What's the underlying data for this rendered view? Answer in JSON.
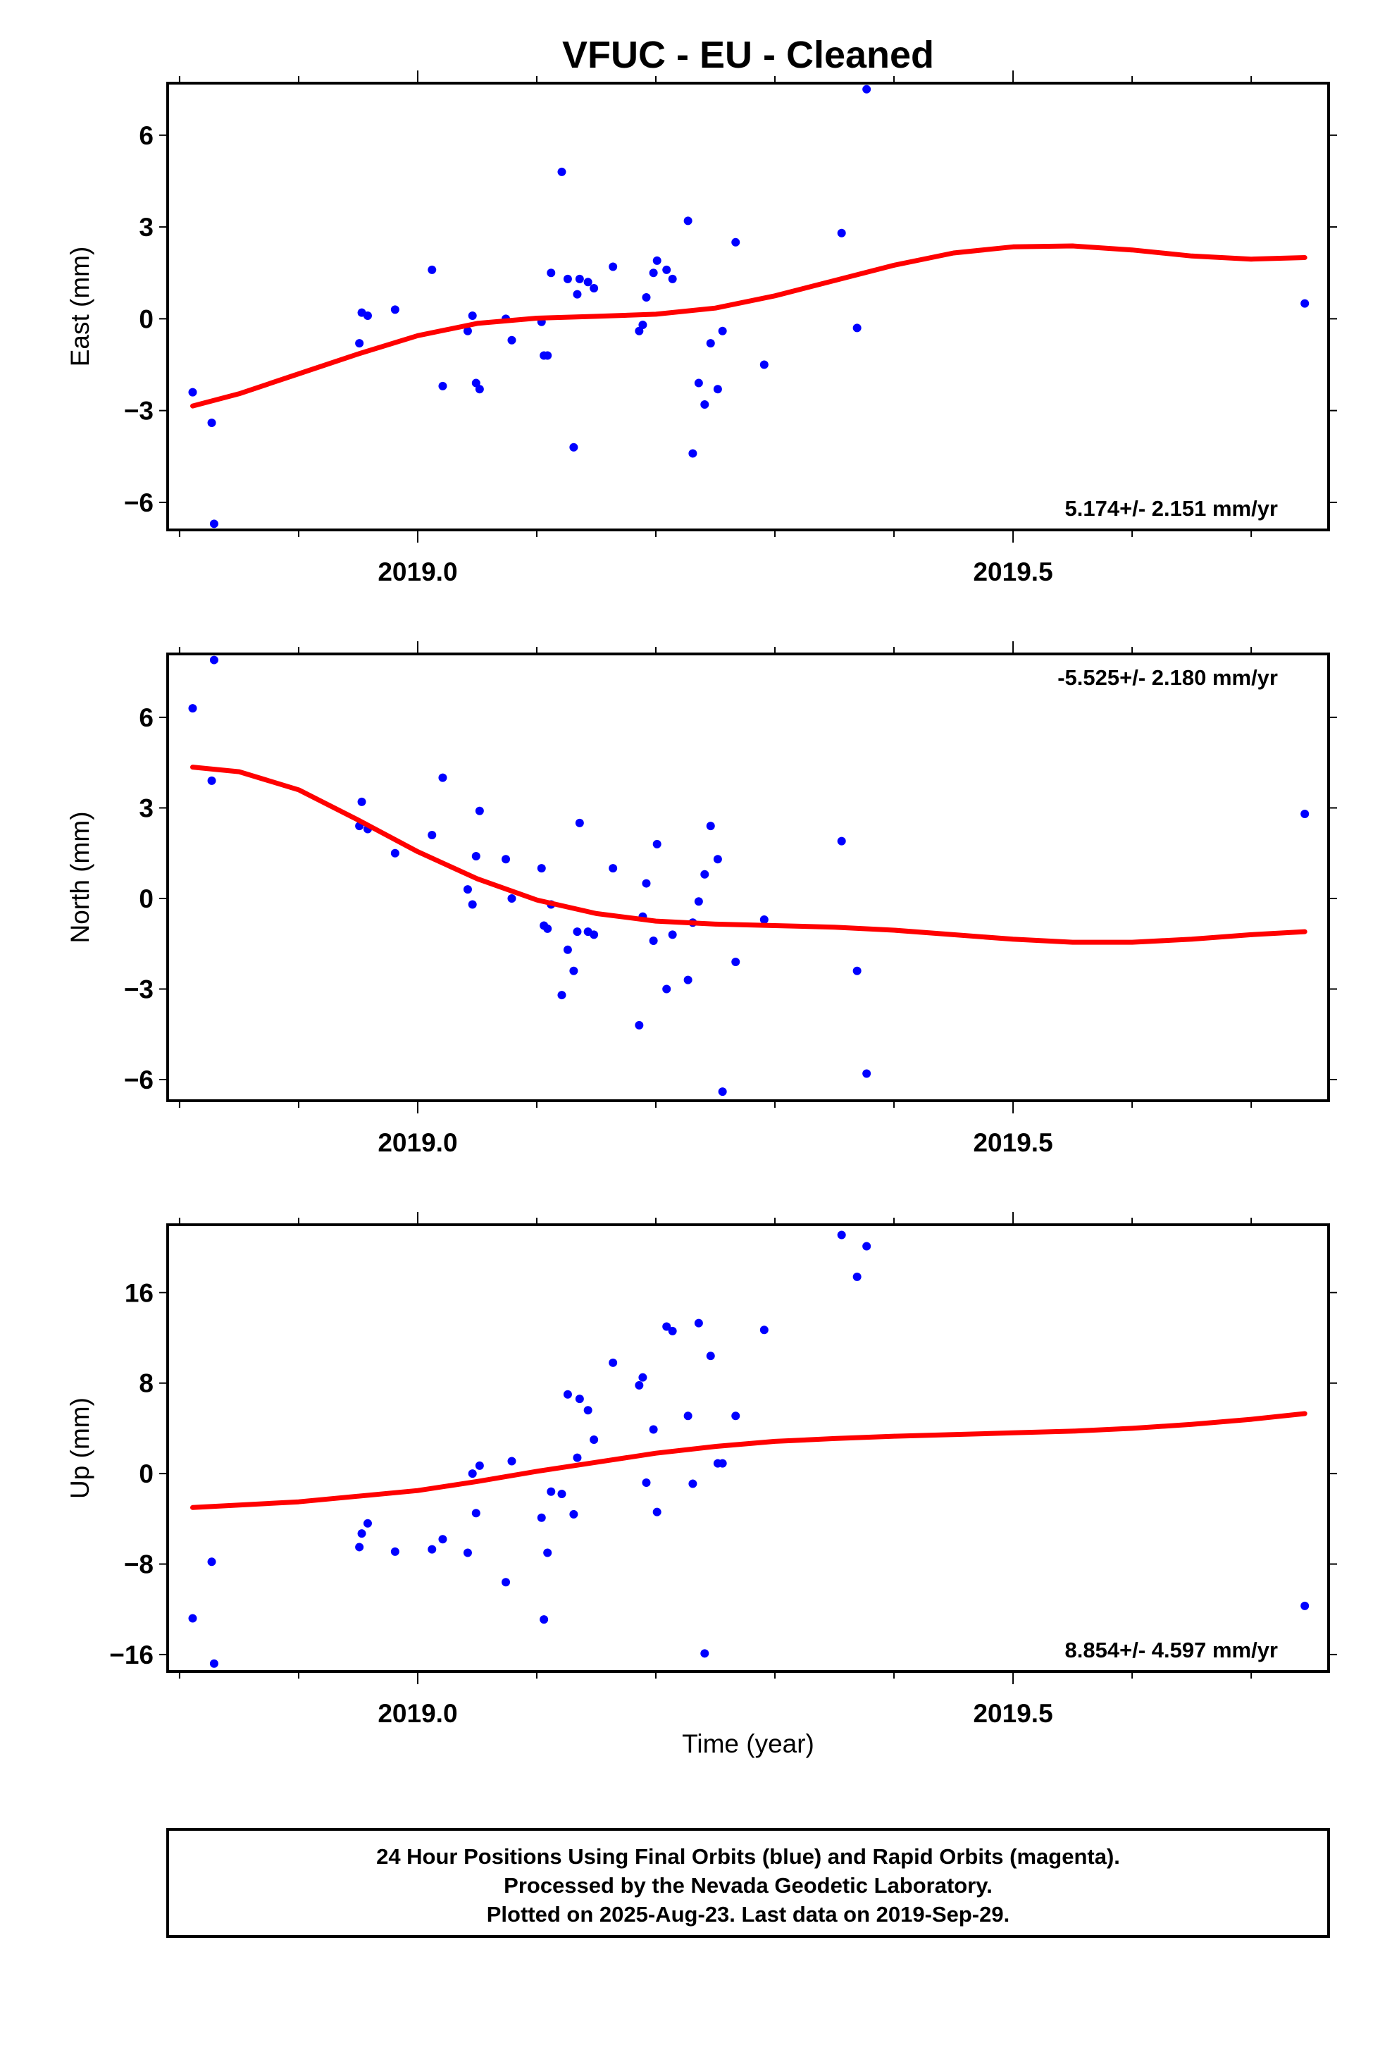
{
  "title": "VFUC  - EU - Cleaned",
  "xlabel": "Time (year)",
  "footer": [
    "24 Hour Positions Using Final Orbits (blue) and Rapid Orbits (magenta).",
    "Processed by the Nevada Geodetic Laboratory.",
    "Plotted on 2025-Aug-23. Last data on 2019-Sep-29."
  ],
  "colors": {
    "points": "#0000ff",
    "fit": "#ff0000",
    "frame": "#000000"
  },
  "chart_data": [
    {
      "type": "scatter",
      "ylabel": "East (mm)",
      "rate_text": "5.174+/- 2.151 mm/yr",
      "xlim": [
        2018.79,
        2019.765
      ],
      "ylim": [
        -6.9,
        7.7
      ],
      "yticks": [
        -6,
        -3,
        0,
        3,
        6
      ],
      "ytick_labels": [
        "−6",
        "−3",
        "0",
        "3",
        "6"
      ],
      "xticks": [
        2019.0,
        2019.5
      ],
      "xtick_labels": [
        "2019.0",
        "2019.5"
      ],
      "minor_xticks": [
        2018.8,
        2018.9,
        2019.1,
        2019.2,
        2019.3,
        2019.4,
        2019.6,
        2019.7
      ],
      "points": [
        [
          2018.811,
          -2.4
        ],
        [
          2018.827,
          -3.4
        ],
        [
          2018.829,
          -6.7
        ],
        [
          2018.951,
          -0.8
        ],
        [
          2018.953,
          0.2
        ],
        [
          2018.958,
          0.1
        ],
        [
          2018.981,
          0.3
        ],
        [
          2019.012,
          1.6
        ],
        [
          2019.021,
          -2.2
        ],
        [
          2019.042,
          -0.4
        ],
        [
          2019.046,
          0.1
        ],
        [
          2019.049,
          -2.1
        ],
        [
          2019.052,
          -2.3
        ],
        [
          2019.074,
          0.0
        ],
        [
          2019.079,
          -0.7
        ],
        [
          2019.104,
          -0.1
        ],
        [
          2019.106,
          -1.2
        ],
        [
          2019.109,
          -1.2
        ],
        [
          2019.112,
          1.5
        ],
        [
          2019.121,
          4.8
        ],
        [
          2019.126,
          1.3
        ],
        [
          2019.131,
          -4.2
        ],
        [
          2019.134,
          0.8
        ],
        [
          2019.136,
          1.3
        ],
        [
          2019.143,
          1.2
        ],
        [
          2019.148,
          1.0
        ],
        [
          2019.164,
          1.7
        ],
        [
          2019.186,
          -0.4
        ],
        [
          2019.189,
          -0.2
        ],
        [
          2019.192,
          0.7
        ],
        [
          2019.198,
          1.5
        ],
        [
          2019.201,
          1.9
        ],
        [
          2019.209,
          1.6
        ],
        [
          2019.214,
          1.3
        ],
        [
          2019.227,
          3.2
        ],
        [
          2019.231,
          -4.4
        ],
        [
          2019.236,
          -2.1
        ],
        [
          2019.241,
          -2.8
        ],
        [
          2019.246,
          -0.8
        ],
        [
          2019.252,
          -2.3
        ],
        [
          2019.256,
          -0.4
        ],
        [
          2019.267,
          2.5
        ],
        [
          2019.291,
          -1.5
        ],
        [
          2019.356,
          2.8
        ],
        [
          2019.369,
          -0.3
        ],
        [
          2019.377,
          7.5
        ],
        [
          2019.745,
          0.5
        ]
      ],
      "fit_line": [
        [
          2018.811,
          -2.85
        ],
        [
          2018.85,
          -2.45
        ],
        [
          2018.9,
          -1.8
        ],
        [
          2018.95,
          -1.15
        ],
        [
          2019.0,
          -0.55
        ],
        [
          2019.05,
          -0.15
        ],
        [
          2019.1,
          0.02
        ],
        [
          2019.15,
          0.08
        ],
        [
          2019.2,
          0.15
        ],
        [
          2019.25,
          0.35
        ],
        [
          2019.3,
          0.75
        ],
        [
          2019.35,
          1.25
        ],
        [
          2019.4,
          1.75
        ],
        [
          2019.45,
          2.15
        ],
        [
          2019.5,
          2.35
        ],
        [
          2019.55,
          2.38
        ],
        [
          2019.6,
          2.25
        ],
        [
          2019.65,
          2.05
        ],
        [
          2019.7,
          1.95
        ],
        [
          2019.745,
          2.0
        ]
      ]
    },
    {
      "type": "scatter",
      "ylabel": "North (mm)",
      "rate_text": "-5.525+/- 2.180 mm/yr",
      "xlim": [
        2018.79,
        2019.765
      ],
      "ylim": [
        -6.7,
        8.1
      ],
      "yticks": [
        -6,
        -3,
        0,
        3,
        6
      ],
      "ytick_labels": [
        "−6",
        "−3",
        "0",
        "3",
        "6"
      ],
      "xticks": [
        2019.0,
        2019.5
      ],
      "xtick_labels": [
        "2019.0",
        "2019.5"
      ],
      "minor_xticks": [
        2018.8,
        2018.9,
        2019.1,
        2019.2,
        2019.3,
        2019.4,
        2019.6,
        2019.7
      ],
      "points": [
        [
          2018.811,
          6.3
        ],
        [
          2018.827,
          3.9
        ],
        [
          2018.829,
          7.9
        ],
        [
          2018.951,
          2.4
        ],
        [
          2018.953,
          3.2
        ],
        [
          2018.958,
          2.3
        ],
        [
          2018.981,
          1.5
        ],
        [
          2019.012,
          2.1
        ],
        [
          2019.021,
          4.0
        ],
        [
          2019.042,
          0.3
        ],
        [
          2019.046,
          -0.2
        ],
        [
          2019.049,
          1.4
        ],
        [
          2019.052,
          2.9
        ],
        [
          2019.074,
          1.3
        ],
        [
          2019.079,
          0.0
        ],
        [
          2019.104,
          1.0
        ],
        [
          2019.106,
          -0.9
        ],
        [
          2019.109,
          -1.0
        ],
        [
          2019.112,
          -0.2
        ],
        [
          2019.121,
          -3.2
        ],
        [
          2019.126,
          -1.7
        ],
        [
          2019.131,
          -2.4
        ],
        [
          2019.134,
          -1.1
        ],
        [
          2019.136,
          2.5
        ],
        [
          2019.143,
          -1.1
        ],
        [
          2019.148,
          -1.2
        ],
        [
          2019.164,
          1.0
        ],
        [
          2019.186,
          -4.2
        ],
        [
          2019.189,
          -0.6
        ],
        [
          2019.192,
          0.5
        ],
        [
          2019.198,
          -1.4
        ],
        [
          2019.201,
          1.8
        ],
        [
          2019.209,
          -3.0
        ],
        [
          2019.214,
          -1.2
        ],
        [
          2019.227,
          -2.7
        ],
        [
          2019.231,
          -0.8
        ],
        [
          2019.236,
          -0.1
        ],
        [
          2019.241,
          0.8
        ],
        [
          2019.246,
          2.4
        ],
        [
          2019.252,
          1.3
        ],
        [
          2019.256,
          -6.4
        ],
        [
          2019.267,
          -2.1
        ],
        [
          2019.291,
          -0.7
        ],
        [
          2019.356,
          1.9
        ],
        [
          2019.369,
          -2.4
        ],
        [
          2019.377,
          -5.8
        ],
        [
          2019.745,
          2.8
        ]
      ],
      "fit_line": [
        [
          2018.811,
          4.35
        ],
        [
          2018.85,
          4.2
        ],
        [
          2018.9,
          3.6
        ],
        [
          2018.95,
          2.6
        ],
        [
          2019.0,
          1.55
        ],
        [
          2019.05,
          0.65
        ],
        [
          2019.1,
          -0.05
        ],
        [
          2019.15,
          -0.5
        ],
        [
          2019.2,
          -0.75
        ],
        [
          2019.25,
          -0.85
        ],
        [
          2019.3,
          -0.9
        ],
        [
          2019.35,
          -0.95
        ],
        [
          2019.4,
          -1.05
        ],
        [
          2019.45,
          -1.2
        ],
        [
          2019.5,
          -1.35
        ],
        [
          2019.55,
          -1.45
        ],
        [
          2019.6,
          -1.45
        ],
        [
          2019.65,
          -1.35
        ],
        [
          2019.7,
          -1.2
        ],
        [
          2019.745,
          -1.1
        ]
      ]
    },
    {
      "type": "scatter",
      "ylabel": "Up (mm)",
      "rate_text": "8.854+/- 4.597 mm/yr",
      "xlim": [
        2018.79,
        2019.765
      ],
      "ylim": [
        -17.5,
        22.0
      ],
      "yticks": [
        -16,
        -8,
        0,
        8,
        16
      ],
      "ytick_labels": [
        "−16",
        "−8",
        "0",
        "8",
        "16"
      ],
      "xticks": [
        2019.0,
        2019.5
      ],
      "xtick_labels": [
        "2019.0",
        "2019.5"
      ],
      "minor_xticks": [
        2018.8,
        2018.9,
        2019.1,
        2019.2,
        2019.3,
        2019.4,
        2019.6,
        2019.7
      ],
      "points": [
        [
          2018.811,
          -12.8
        ],
        [
          2018.827,
          -7.8
        ],
        [
          2018.829,
          -16.8
        ],
        [
          2018.951,
          -6.5
        ],
        [
          2018.953,
          -5.3
        ],
        [
          2018.958,
          -4.4
        ],
        [
          2018.981,
          -6.9
        ],
        [
          2019.012,
          -6.7
        ],
        [
          2019.021,
          -5.8
        ],
        [
          2019.042,
          -7.0
        ],
        [
          2019.046,
          0.0
        ],
        [
          2019.049,
          -3.5
        ],
        [
          2019.052,
          0.7
        ],
        [
          2019.074,
          -9.6
        ],
        [
          2019.079,
          1.1
        ],
        [
          2019.104,
          -3.9
        ],
        [
          2019.106,
          -12.9
        ],
        [
          2019.109,
          -7.0
        ],
        [
          2019.112,
          -1.6
        ],
        [
          2019.121,
          -1.8
        ],
        [
          2019.126,
          7.0
        ],
        [
          2019.131,
          -3.6
        ],
        [
          2019.134,
          1.4
        ],
        [
          2019.136,
          6.6
        ],
        [
          2019.143,
          5.6
        ],
        [
          2019.148,
          3.0
        ],
        [
          2019.164,
          9.8
        ],
        [
          2019.186,
          7.8
        ],
        [
          2019.189,
          8.5
        ],
        [
          2019.192,
          -0.8
        ],
        [
          2019.198,
          3.9
        ],
        [
          2019.201,
          -3.4
        ],
        [
          2019.209,
          13.0
        ],
        [
          2019.214,
          12.6
        ],
        [
          2019.227,
          5.1
        ],
        [
          2019.231,
          -0.9
        ],
        [
          2019.236,
          13.3
        ],
        [
          2019.241,
          -15.9
        ],
        [
          2019.246,
          10.4
        ],
        [
          2019.252,
          0.9
        ],
        [
          2019.256,
          0.9
        ],
        [
          2019.267,
          5.1
        ],
        [
          2019.291,
          12.7
        ],
        [
          2019.356,
          21.1
        ],
        [
          2019.369,
          17.4
        ],
        [
          2019.377,
          20.1
        ],
        [
          2019.745,
          -11.7
        ]
      ],
      "fit_line": [
        [
          2018.811,
          -3.0
        ],
        [
          2018.9,
          -2.5
        ],
        [
          2019.0,
          -1.5
        ],
        [
          2019.05,
          -0.7
        ],
        [
          2019.1,
          0.2
        ],
        [
          2019.15,
          1.0
        ],
        [
          2019.2,
          1.8
        ],
        [
          2019.25,
          2.4
        ],
        [
          2019.3,
          2.85
        ],
        [
          2019.35,
          3.1
        ],
        [
          2019.4,
          3.3
        ],
        [
          2019.45,
          3.45
        ],
        [
          2019.5,
          3.6
        ],
        [
          2019.55,
          3.75
        ],
        [
          2019.6,
          4.0
        ],
        [
          2019.65,
          4.35
        ],
        [
          2019.7,
          4.8
        ],
        [
          2019.745,
          5.3
        ]
      ]
    }
  ]
}
